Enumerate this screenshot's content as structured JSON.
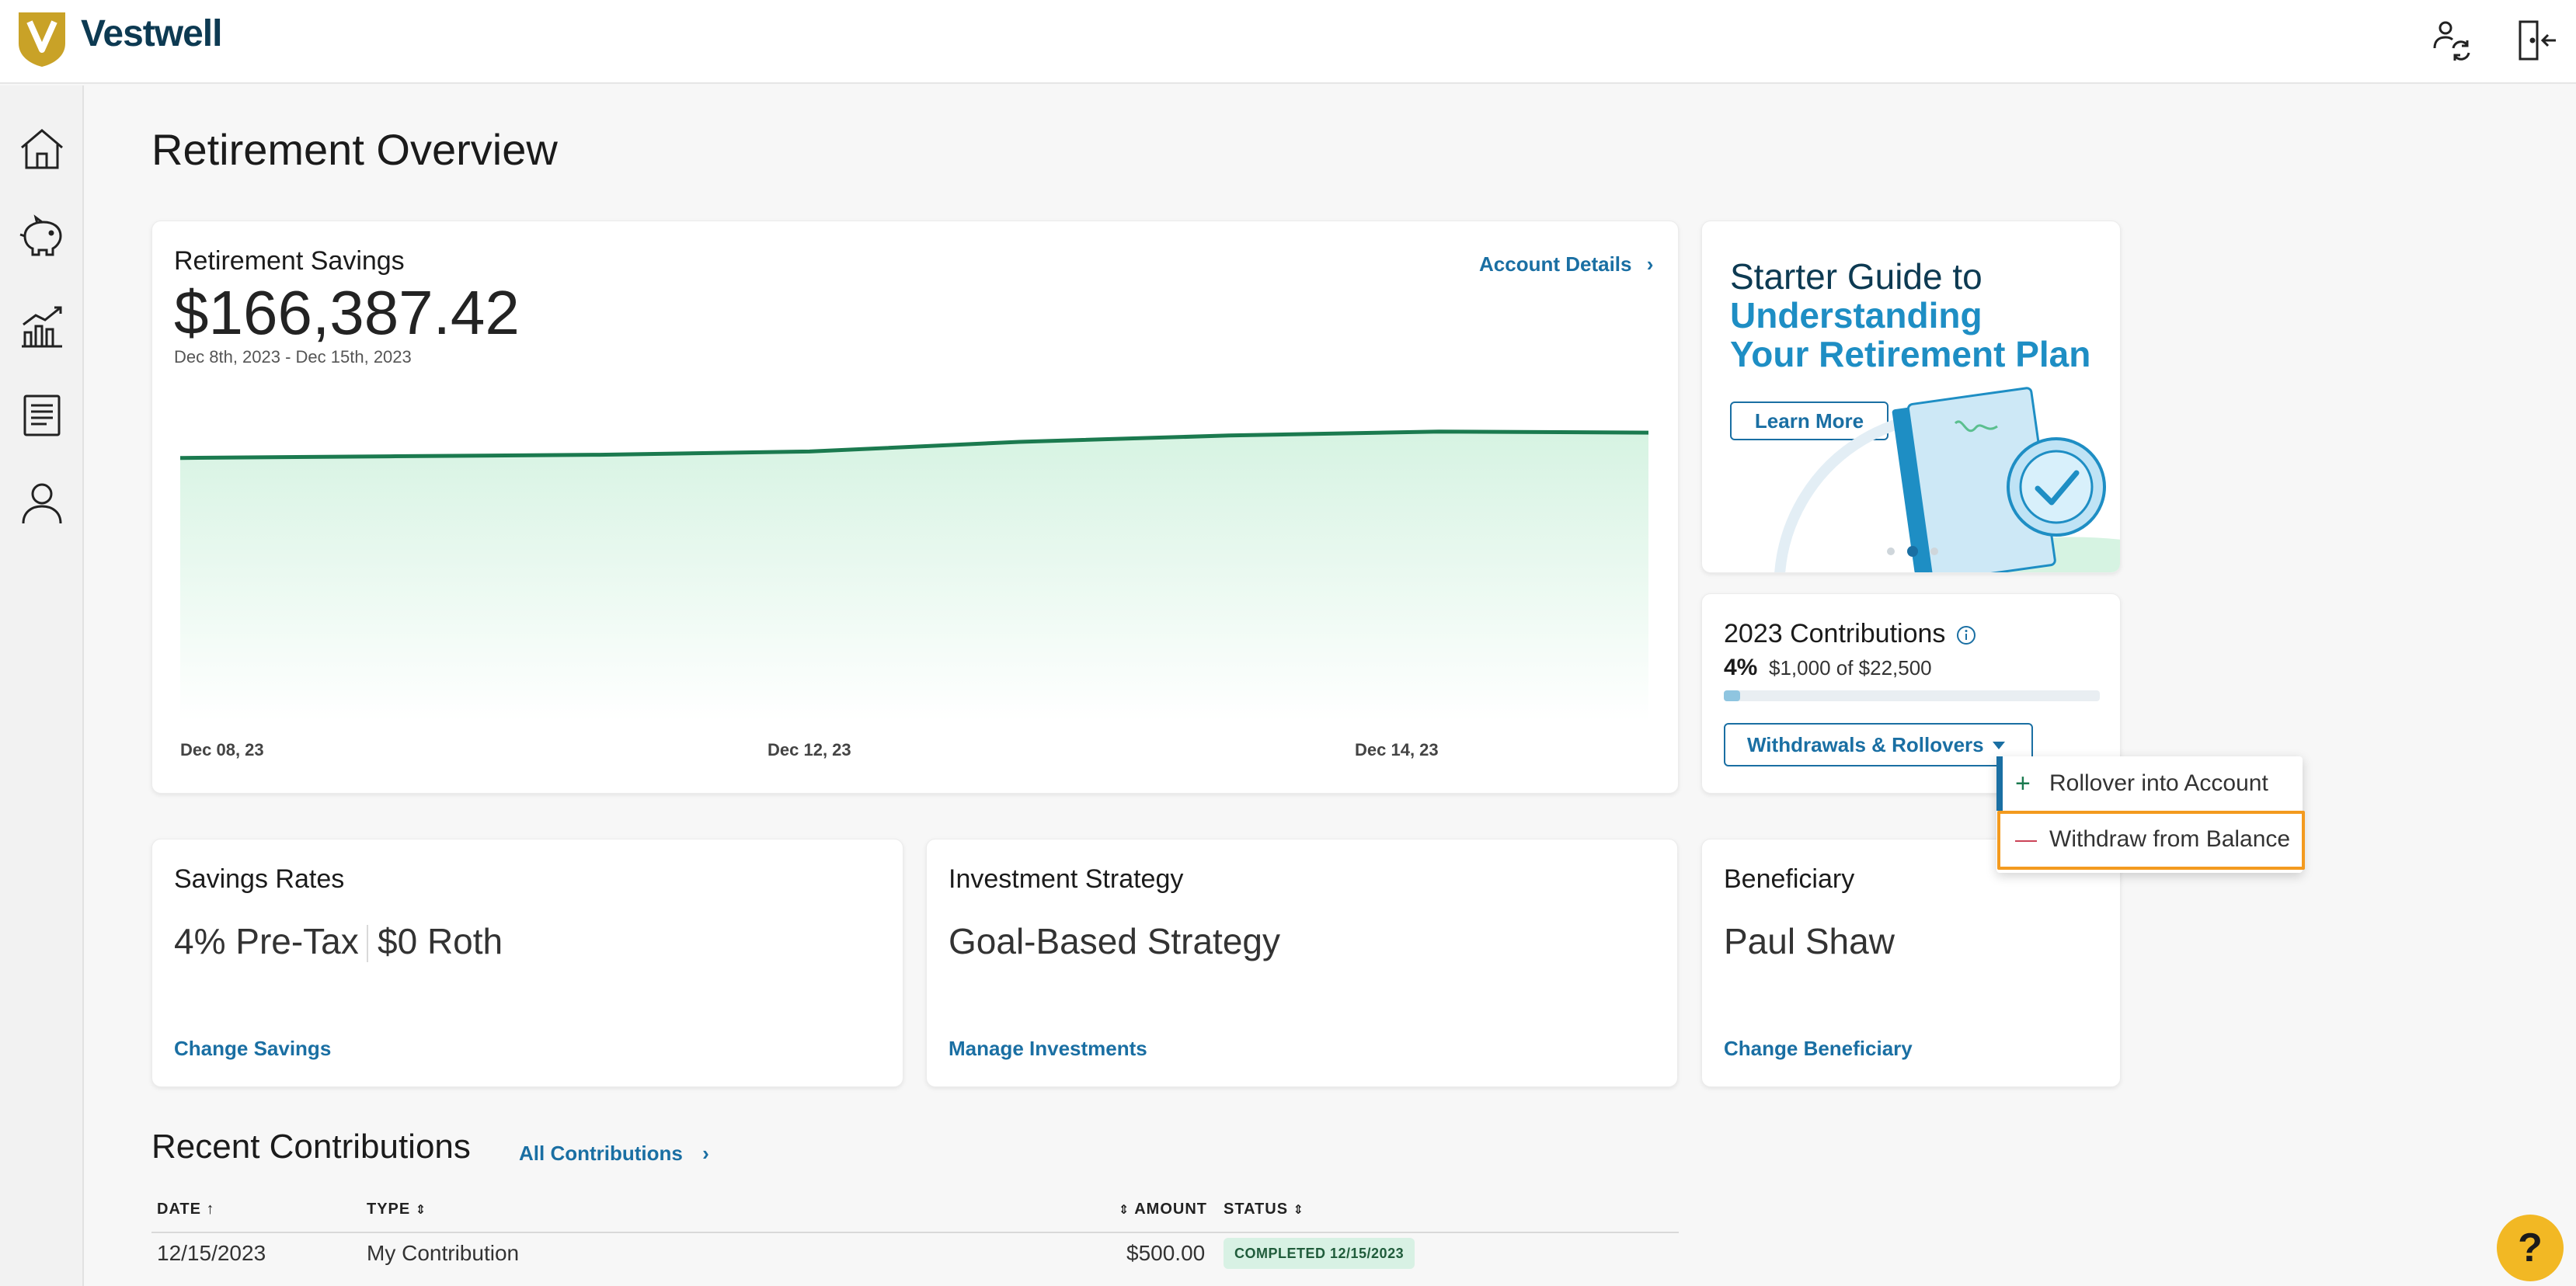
{
  "brand": {
    "name": "Vestwell",
    "logo_letter": "V"
  },
  "header_icons": [
    "switch-account-icon",
    "logout-icon"
  ],
  "sidebar_icons": [
    "home-icon",
    "piggy-bank-icon",
    "chart-icon",
    "document-icon",
    "profile-icon"
  ],
  "page": {
    "title": "Retirement Overview"
  },
  "savings": {
    "title": "Retirement Savings",
    "amount": "$166,387.42",
    "range": "Dec 8th, 2023 - Dec 15th, 2023",
    "link": "Account Details",
    "x_labels": [
      "Dec 08, 23",
      "Dec 12, 23",
      "Dec 14, 23"
    ]
  },
  "chart_data": {
    "type": "area",
    "x": [
      "Dec 08, 23",
      "Dec 09, 23",
      "Dec 10, 23",
      "Dec 11, 23",
      "Dec 12, 23",
      "Dec 13, 23",
      "Dec 14, 23",
      "Dec 15, 23"
    ],
    "values": [
      165600,
      165650,
      165700,
      165800,
      166100,
      166300,
      166420,
      166387.42
    ],
    "title": "Retirement Savings",
    "ylim": [
      0,
      170000
    ],
    "color": "#1b7a4f",
    "fill": "#dff5e8"
  },
  "promo": {
    "line1": "Starter Guide to",
    "line2": "Understanding",
    "line3": "Your Retirement Plan",
    "button": "Learn More",
    "active_dot": 1
  },
  "contributions": {
    "title": "2023 Contributions",
    "percent": "4%",
    "amount": "$1,000 of $22,500",
    "progress_fraction": 0.044,
    "button": "Withdrawals & Rollovers"
  },
  "dropdown": {
    "items": [
      {
        "label": "Rollover into Account",
        "icon": "+"
      },
      {
        "label": "Withdraw from Balance",
        "icon": "—"
      }
    ]
  },
  "savings_rates": {
    "title": "Savings Rates",
    "pretax": "4% Pre-Tax",
    "roth": "$0 Roth",
    "link": "Change Savings"
  },
  "investment": {
    "title": "Investment Strategy",
    "value": "Goal-Based Strategy",
    "link": "Manage Investments"
  },
  "beneficiary": {
    "title": "Beneficiary",
    "value": "Paul Shaw",
    "link": "Change Beneficiary"
  },
  "recent": {
    "title": "Recent Contributions",
    "link": "All Contributions",
    "headers": {
      "date": "DATE",
      "type": "TYPE",
      "amount": "AMOUNT",
      "status": "STATUS"
    },
    "rows": [
      {
        "date": "12/15/2023",
        "type": "My Contribution",
        "amount": "$500.00",
        "status": "COMPLETED 12/15/2023"
      }
    ]
  },
  "help": {
    "label": "?"
  },
  "colors": {
    "accent": "#1a6fa3",
    "brand_navy": "#0d3a52",
    "highlight": "#f39a1f",
    "help": "#f2b824"
  }
}
